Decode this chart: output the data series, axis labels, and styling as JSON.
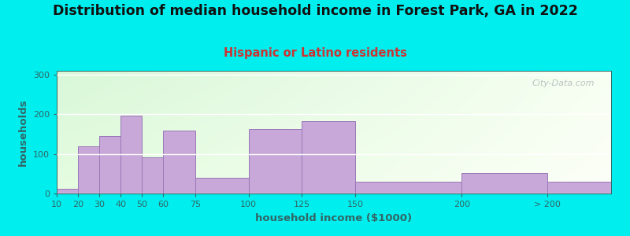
{
  "title": "Distribution of median household income in Forest Park, GA in 2022",
  "subtitle": "Hispanic or Latino residents",
  "xlabel": "household income ($1000)",
  "ylabel": "households",
  "background_color": "#00EEEE",
  "bar_color": "#C8A8D8",
  "bar_edge_color": "#9A78B8",
  "title_fontsize": 12.5,
  "subtitle_fontsize": 10.5,
  "subtitle_color": "#CC3333",
  "title_color": "#111111",
  "axis_color": "#336666",
  "watermark": "City-Data.com",
  "categories": [
    "10",
    "20",
    "30",
    "40",
    "50",
    "60",
    "75",
    "100",
    "125",
    "150",
    "200",
    "> 200"
  ],
  "values": [
    12,
    120,
    145,
    197,
    92,
    158,
    40,
    162,
    182,
    30,
    52,
    29
  ],
  "bar_lefts": [
    10,
    20,
    30,
    40,
    50,
    60,
    75,
    100,
    125,
    150,
    200,
    240
  ],
  "bar_widths": [
    10,
    10,
    10,
    10,
    10,
    15,
    25,
    25,
    25,
    50,
    40,
    30
  ],
  "tick_positions": [
    10,
    20,
    30,
    40,
    50,
    60,
    75,
    100,
    125,
    150,
    200,
    240
  ],
  "xlim_left": 10,
  "xlim_right": 270,
  "ylim": [
    0,
    310
  ],
  "yticks": [
    0,
    100,
    200,
    300
  ]
}
